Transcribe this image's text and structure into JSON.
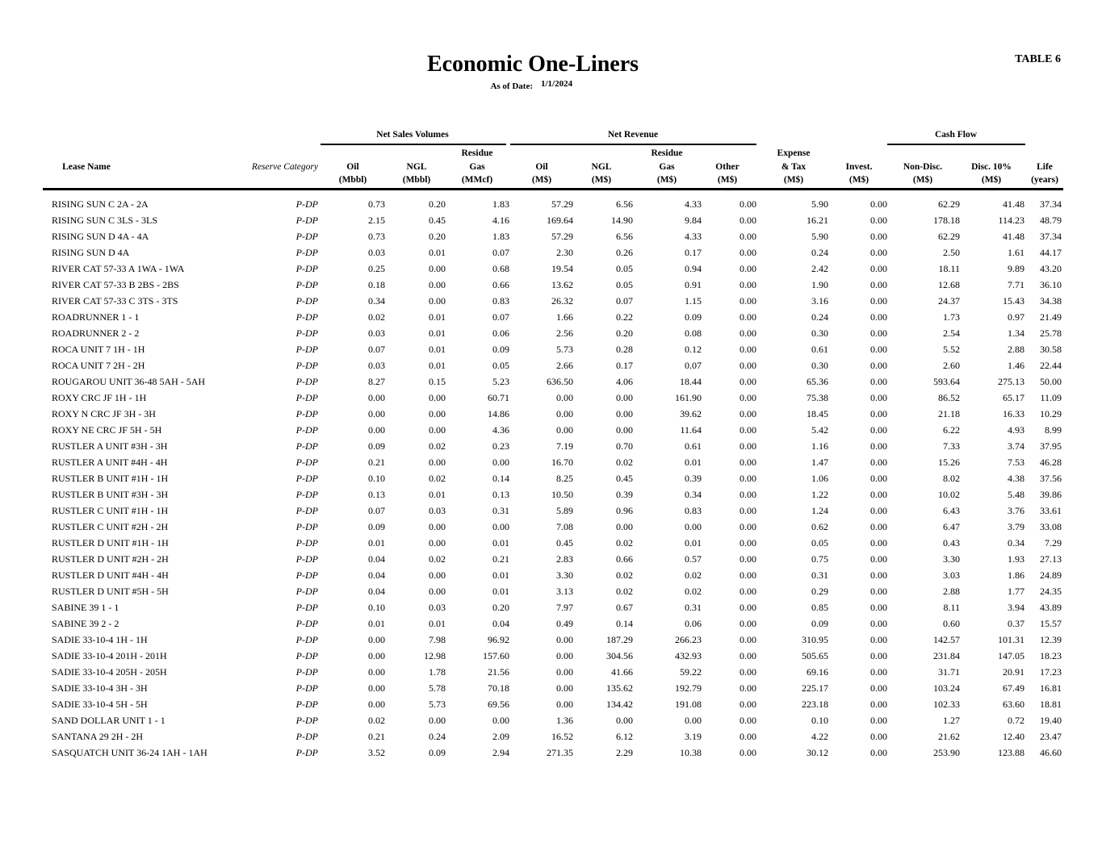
{
  "header": {
    "title": "Economic One-Liners",
    "table_label": "TABLE 6",
    "as_of_label": "As of Date:",
    "as_of_value": "1/1/2024"
  },
  "table": {
    "group_headers": [
      "Net Sales Volumes",
      "Net Revenue",
      "Cash Flow"
    ],
    "columns": [
      [
        "Lease Name"
      ],
      [
        "Reserve Category"
      ],
      [
        "Oil",
        "(Mbbl)"
      ],
      [
        "NGL",
        "(Mbbl)"
      ],
      [
        "Residue",
        "Gas",
        "(MMcf)"
      ],
      [
        "Oil",
        "(M$)"
      ],
      [
        "NGL",
        "(M$)"
      ],
      [
        "Residue",
        "Gas",
        "(M$)"
      ],
      [
        "Other",
        "(M$)"
      ],
      [
        "Expense",
        "& Tax",
        "(M$)"
      ],
      [
        "Invest.",
        "(M$)"
      ],
      [
        "Non-Disc.",
        "(M$)"
      ],
      [
        "Disc. 10%",
        "(M$)"
      ],
      [
        "Life",
        "(years)"
      ]
    ],
    "rows": [
      [
        "RISING SUN C 2A - 2A",
        "P-DP",
        "0.73",
        "0.20",
        "1.83",
        "57.29",
        "6.56",
        "4.33",
        "0.00",
        "5.90",
        "0.00",
        "62.29",
        "41.48",
        "37.34"
      ],
      [
        "RISING SUN C 3LS - 3LS",
        "P-DP",
        "2.15",
        "0.45",
        "4.16",
        "169.64",
        "14.90",
        "9.84",
        "0.00",
        "16.21",
        "0.00",
        "178.18",
        "114.23",
        "48.79"
      ],
      [
        "RISING SUN D 4A - 4A",
        "P-DP",
        "0.73",
        "0.20",
        "1.83",
        "57.29",
        "6.56",
        "4.33",
        "0.00",
        "5.90",
        "0.00",
        "62.29",
        "41.48",
        "37.34"
      ],
      [
        "RISING SUN D 4A",
        "P-DP",
        "0.03",
        "0.01",
        "0.07",
        "2.30",
        "0.26",
        "0.17",
        "0.00",
        "0.24",
        "0.00",
        "2.50",
        "1.61",
        "44.17"
      ],
      [
        "RIVER CAT 57-33 A 1WA - 1WA",
        "P-DP",
        "0.25",
        "0.00",
        "0.68",
        "19.54",
        "0.05",
        "0.94",
        "0.00",
        "2.42",
        "0.00",
        "18.11",
        "9.89",
        "43.20"
      ],
      [
        "RIVER CAT 57-33 B 2BS - 2BS",
        "P-DP",
        "0.18",
        "0.00",
        "0.66",
        "13.62",
        "0.05",
        "0.91",
        "0.00",
        "1.90",
        "0.00",
        "12.68",
        "7.71",
        "36.10"
      ],
      [
        "RIVER CAT 57-33 C 3TS - 3TS",
        "P-DP",
        "0.34",
        "0.00",
        "0.83",
        "26.32",
        "0.07",
        "1.15",
        "0.00",
        "3.16",
        "0.00",
        "24.37",
        "15.43",
        "34.38"
      ],
      [
        "ROADRUNNER 1 - 1",
        "P-DP",
        "0.02",
        "0.01",
        "0.07",
        "1.66",
        "0.22",
        "0.09",
        "0.00",
        "0.24",
        "0.00",
        "1.73",
        "0.97",
        "21.49"
      ],
      [
        "ROADRUNNER 2 - 2",
        "P-DP",
        "0.03",
        "0.01",
        "0.06",
        "2.56",
        "0.20",
        "0.08",
        "0.00",
        "0.30",
        "0.00",
        "2.54",
        "1.34",
        "25.78"
      ],
      [
        "ROCA UNIT 7 1H - 1H",
        "P-DP",
        "0.07",
        "0.01",
        "0.09",
        "5.73",
        "0.28",
        "0.12",
        "0.00",
        "0.61",
        "0.00",
        "5.52",
        "2.88",
        "30.58"
      ],
      [
        "ROCA UNIT 7 2H - 2H",
        "P-DP",
        "0.03",
        "0.01",
        "0.05",
        "2.66",
        "0.17",
        "0.07",
        "0.00",
        "0.30",
        "0.00",
        "2.60",
        "1.46",
        "22.44"
      ],
      [
        "ROUGAROU UNIT 36-48 5AH - 5AH",
        "P-DP",
        "8.27",
        "0.15",
        "5.23",
        "636.50",
        "4.06",
        "18.44",
        "0.00",
        "65.36",
        "0.00",
        "593.64",
        "275.13",
        "50.00"
      ],
      [
        "ROXY CRC JF 1H - 1H",
        "P-DP",
        "0.00",
        "0.00",
        "60.71",
        "0.00",
        "0.00",
        "161.90",
        "0.00",
        "75.38",
        "0.00",
        "86.52",
        "65.17",
        "11.09"
      ],
      [
        "ROXY N CRC JF 3H - 3H",
        "P-DP",
        "0.00",
        "0.00",
        "14.86",
        "0.00",
        "0.00",
        "39.62",
        "0.00",
        "18.45",
        "0.00",
        "21.18",
        "16.33",
        "10.29"
      ],
      [
        "ROXY NE CRC JF 5H - 5H",
        "P-DP",
        "0.00",
        "0.00",
        "4.36",
        "0.00",
        "0.00",
        "11.64",
        "0.00",
        "5.42",
        "0.00",
        "6.22",
        "4.93",
        "8.99"
      ],
      [
        "RUSTLER A UNIT #3H - 3H",
        "P-DP",
        "0.09",
        "0.02",
        "0.23",
        "7.19",
        "0.70",
        "0.61",
        "0.00",
        "1.16",
        "0.00",
        "7.33",
        "3.74",
        "37.95"
      ],
      [
        "RUSTLER A UNIT #4H - 4H",
        "P-DP",
        "0.21",
        "0.00",
        "0.00",
        "16.70",
        "0.02",
        "0.01",
        "0.00",
        "1.47",
        "0.00",
        "15.26",
        "7.53",
        "46.28"
      ],
      [
        "RUSTLER B UNIT #1H - 1H",
        "P-DP",
        "0.10",
        "0.02",
        "0.14",
        "8.25",
        "0.45",
        "0.39",
        "0.00",
        "1.06",
        "0.00",
        "8.02",
        "4.38",
        "37.56"
      ],
      [
        "RUSTLER B UNIT #3H - 3H",
        "P-DP",
        "0.13",
        "0.01",
        "0.13",
        "10.50",
        "0.39",
        "0.34",
        "0.00",
        "1.22",
        "0.00",
        "10.02",
        "5.48",
        "39.86"
      ],
      [
        "RUSTLER C UNIT #1H - 1H",
        "P-DP",
        "0.07",
        "0.03",
        "0.31",
        "5.89",
        "0.96",
        "0.83",
        "0.00",
        "1.24",
        "0.00",
        "6.43",
        "3.76",
        "33.61"
      ],
      [
        "RUSTLER C UNIT #2H - 2H",
        "P-DP",
        "0.09",
        "0.00",
        "0.00",
        "7.08",
        "0.00",
        "0.00",
        "0.00",
        "0.62",
        "0.00",
        "6.47",
        "3.79",
        "33.08"
      ],
      [
        "RUSTLER D UNIT #1H - 1H",
        "P-DP",
        "0.01",
        "0.00",
        "0.01",
        "0.45",
        "0.02",
        "0.01",
        "0.00",
        "0.05",
        "0.00",
        "0.43",
        "0.34",
        "7.29"
      ],
      [
        "RUSTLER D UNIT #2H - 2H",
        "P-DP",
        "0.04",
        "0.02",
        "0.21",
        "2.83",
        "0.66",
        "0.57",
        "0.00",
        "0.75",
        "0.00",
        "3.30",
        "1.93",
        "27.13"
      ],
      [
        "RUSTLER D UNIT #4H - 4H",
        "P-DP",
        "0.04",
        "0.00",
        "0.01",
        "3.30",
        "0.02",
        "0.02",
        "0.00",
        "0.31",
        "0.00",
        "3.03",
        "1.86",
        "24.89"
      ],
      [
        "RUSTLER D UNIT #5H - 5H",
        "P-DP",
        "0.04",
        "0.00",
        "0.01",
        "3.13",
        "0.02",
        "0.02",
        "0.00",
        "0.29",
        "0.00",
        "2.88",
        "1.77",
        "24.35"
      ],
      [
        "SABINE 39 1 - 1",
        "P-DP",
        "0.10",
        "0.03",
        "0.20",
        "7.97",
        "0.67",
        "0.31",
        "0.00",
        "0.85",
        "0.00",
        "8.11",
        "3.94",
        "43.89"
      ],
      [
        "SABINE 39 2 - 2",
        "P-DP",
        "0.01",
        "0.01",
        "0.04",
        "0.49",
        "0.14",
        "0.06",
        "0.00",
        "0.09",
        "0.00",
        "0.60",
        "0.37",
        "15.57"
      ],
      [
        "SADIE 33-10-4 1H - 1H",
        "P-DP",
        "0.00",
        "7.98",
        "96.92",
        "0.00",
        "187.29",
        "266.23",
        "0.00",
        "310.95",
        "0.00",
        "142.57",
        "101.31",
        "12.39"
      ],
      [
        "SADIE 33-10-4 201H - 201H",
        "P-DP",
        "0.00",
        "12.98",
        "157.60",
        "0.00",
        "304.56",
        "432.93",
        "0.00",
        "505.65",
        "0.00",
        "231.84",
        "147.05",
        "18.23"
      ],
      [
        "SADIE 33-10-4 205H - 205H",
        "P-DP",
        "0.00",
        "1.78",
        "21.56",
        "0.00",
        "41.66",
        "59.22",
        "0.00",
        "69.16",
        "0.00",
        "31.71",
        "20.91",
        "17.23"
      ],
      [
        "SADIE 33-10-4 3H - 3H",
        "P-DP",
        "0.00",
        "5.78",
        "70.18",
        "0.00",
        "135.62",
        "192.79",
        "0.00",
        "225.17",
        "0.00",
        "103.24",
        "67.49",
        "16.81"
      ],
      [
        "SADIE 33-10-4 5H - 5H",
        "P-DP",
        "0.00",
        "5.73",
        "69.56",
        "0.00",
        "134.42",
        "191.08",
        "0.00",
        "223.18",
        "0.00",
        "102.33",
        "63.60",
        "18.81"
      ],
      [
        "SAND DOLLAR UNIT 1 - 1",
        "P-DP",
        "0.02",
        "0.00",
        "0.00",
        "1.36",
        "0.00",
        "0.00",
        "0.00",
        "0.10",
        "0.00",
        "1.27",
        "0.72",
        "19.40"
      ],
      [
        "SANTANA 29 2H - 2H",
        "P-DP",
        "0.21",
        "0.24",
        "2.09",
        "16.52",
        "6.12",
        "3.19",
        "0.00",
        "4.22",
        "0.00",
        "21.62",
        "12.40",
        "23.47"
      ],
      [
        "SASQUATCH UNIT 36-24 1AH - 1AH",
        "P-DP",
        "3.52",
        "0.09",
        "2.94",
        "271.35",
        "2.29",
        "10.38",
        "0.00",
        "30.12",
        "0.00",
        "253.90",
        "123.88",
        "46.60"
      ]
    ]
  }
}
